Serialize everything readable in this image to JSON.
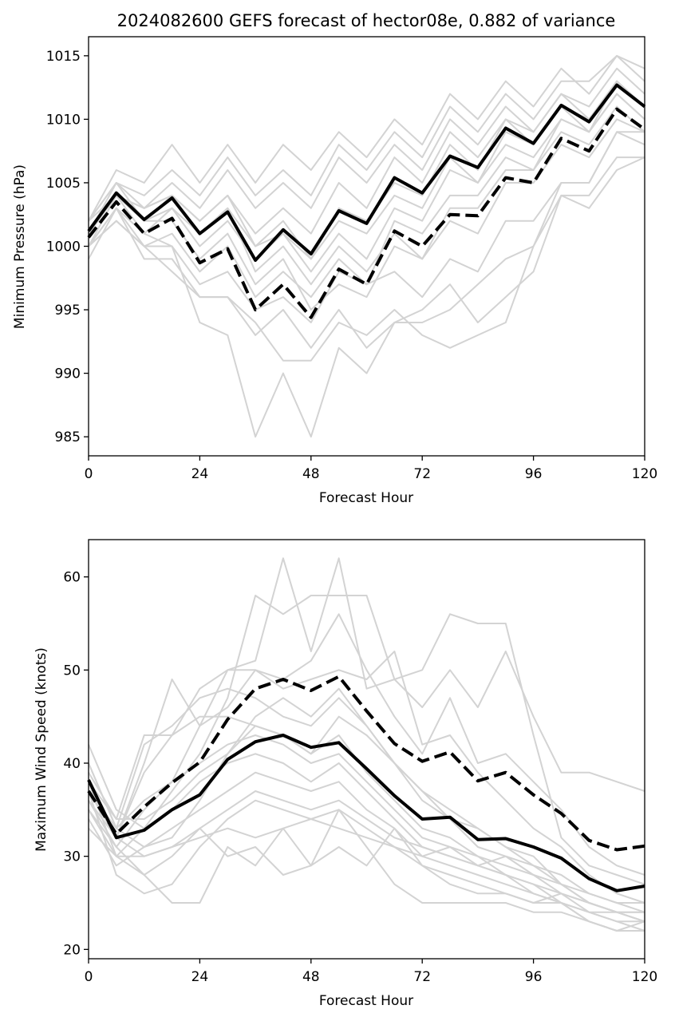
{
  "chart_data": [
    {
      "type": "line",
      "title": "2024082600 GEFS forecast of hector08e, 0.882 of variance",
      "xlabel": "Forecast Hour",
      "ylabel": "Minimum Pressure (hPa)",
      "xlim": [
        0,
        120
      ],
      "ylim": [
        983.5,
        1016.5
      ],
      "xticks": [
        0,
        24,
        48,
        72,
        96,
        120
      ],
      "yticks": [
        985,
        990,
        995,
        1000,
        1005,
        1010,
        1015
      ],
      "x": [
        0,
        6,
        12,
        18,
        24,
        30,
        36,
        42,
        48,
        54,
        60,
        66,
        72,
        78,
        84,
        90,
        96,
        102,
        108,
        114,
        120
      ],
      "series": [
        {
          "style": "member",
          "values": [
            1002,
            1006,
            1005,
            1008,
            1005,
            1008,
            1005,
            1008,
            1006,
            1009,
            1007,
            1010,
            1008,
            1012,
            1010,
            1013,
            1011,
            1014,
            1012,
            1015,
            1014
          ]
        },
        {
          "style": "member",
          "values": [
            1001,
            1005,
            1004,
            1006,
            1004,
            1007,
            1004,
            1006,
            1004,
            1008,
            1006,
            1009,
            1007,
            1011,
            1009,
            1012,
            1010,
            1013,
            1013,
            1015,
            1013
          ]
        },
        {
          "style": "member",
          "values": [
            1000,
            1004,
            1003,
            1005,
            1003,
            1006,
            1003,
            1005,
            1003,
            1007,
            1005,
            1008,
            1006,
            1010,
            1008,
            1011,
            1009,
            1012,
            1011,
            1014,
            1012
          ]
        },
        {
          "style": "member",
          "values": [
            1002,
            1005,
            1003,
            1004,
            1002,
            1004,
            1001,
            1003,
            1001,
            1005,
            1003,
            1007,
            1005,
            1009,
            1007,
            1010,
            1009,
            1012,
            1010,
            1013,
            1011
          ]
        },
        {
          "style": "member",
          "values": [
            1000,
            1003,
            1001,
            1003,
            1000,
            1002,
            999,
            1001,
            998,
            1001,
            999,
            1003,
            1002,
            1006,
            1005,
            1008,
            1007,
            1010,
            1009,
            1012,
            1010
          ]
        },
        {
          "style": "member",
          "values": [
            999,
            1003,
            1000,
            1001,
            998,
            1000,
            996,
            998,
            996,
            999,
            997,
            1002,
            1001,
            1004,
            1004,
            1007,
            1006,
            1009,
            1008,
            1011,
            1009
          ]
        },
        {
          "style": "member",
          "values": [
            1001,
            1004,
            1002,
            1002,
            999,
            1001,
            997,
            999,
            995,
            997,
            996,
            1000,
            999,
            1002,
            1001,
            1005,
            1005,
            1008,
            1007,
            1010,
            1009
          ]
        },
        {
          "style": "member",
          "values": [
            1000,
            1002,
            1000,
            1000,
            997,
            998,
            995,
            996,
            994,
            998,
            997,
            998,
            996,
            999,
            998,
            1002,
            1002,
            1005,
            1005,
            1009,
            1008
          ]
        },
        {
          "style": "member",
          "values": [
            1000,
            1003,
            999,
            999,
            996,
            996,
            993,
            995,
            992,
            995,
            992,
            994,
            994,
            995,
            997,
            999,
            1000,
            1004,
            1004,
            1007,
            1007
          ]
        },
        {
          "style": "member",
          "values": [
            1001,
            1004,
            1001,
            1000,
            994,
            993,
            985,
            990,
            985,
            992,
            990,
            994,
            995,
            997,
            994,
            996,
            998,
            1004,
            1003,
            1006,
            1007
          ]
        },
        {
          "style": "member",
          "values": [
            1000,
            1002,
            1000,
            998,
            996,
            996,
            994,
            991,
            991,
            994,
            993,
            995,
            993,
            992,
            993,
            994,
            1000,
            1005,
            1005,
            1009,
            1009
          ]
        },
        {
          "style": "member",
          "values": [
            1002,
            1004,
            1002,
            1003,
            1001,
            1003,
            1000,
            1002,
            999,
            1002,
            1001,
            1004,
            1003,
            1007,
            1005,
            1009,
            1008,
            1011,
            1009,
            1013,
            1011
          ]
        },
        {
          "style": "member",
          "values": [
            1002,
            1005,
            1002,
            1004,
            1001,
            1003,
            998,
            1000,
            997,
            1000,
            998,
            1001,
            999,
            1003,
            1003,
            1006,
            1006,
            1010,
            1009,
            1012,
            1010
          ]
        },
        {
          "style": "member",
          "values": [
            1001,
            1004,
            1003,
            1004,
            1002,
            1004,
            1000,
            1001,
            999,
            1003,
            1002,
            1005,
            1004,
            1008,
            1006,
            1010,
            1008,
            1011,
            1010,
            1013,
            1011
          ]
        },
        {
          "style": "mean",
          "values": [
            1001.2,
            1004.2,
            1002.1,
            1003.8,
            1001.0,
            1002.7,
            998.9,
            1001.3,
            999.4,
            1002.8,
            1001.8,
            1005.4,
            1004.2,
            1007.1,
            1006.2,
            1009.3,
            1008.1,
            1011.1,
            1009.8,
            1012.7,
            1011.0
          ]
        },
        {
          "style": "mean-dash",
          "values": [
            1000.7,
            1003.5,
            1001.0,
            1002.2,
            998.7,
            999.8,
            995.0,
            997.0,
            994.4,
            998.2,
            997.0,
            1001.2,
            1000.0,
            1002.5,
            1002.4,
            1005.4,
            1005.0,
            1008.5,
            1007.5,
            1010.8,
            1009.2
          ]
        }
      ]
    },
    {
      "type": "line",
      "xlabel": "Forecast Hour",
      "ylabel": "Maximum Wind Speed (knots)",
      "xlim": [
        0,
        120
      ],
      "ylim": [
        19,
        64
      ],
      "xticks": [
        0,
        24,
        48,
        72,
        96,
        120
      ],
      "yticks": [
        20,
        30,
        40,
        50,
        60
      ],
      "x": [
        0,
        6,
        12,
        18,
        24,
        30,
        36,
        42,
        48,
        54,
        60,
        66,
        72,
        78,
        84,
        90,
        96,
        102,
        108,
        114,
        120
      ],
      "series": [
        {
          "style": "member",
          "values": [
            42,
            35,
            33,
            37,
            41,
            47,
            58,
            56,
            58,
            58,
            58,
            49,
            50,
            56,
            55,
            55,
            43,
            32,
            29,
            28,
            27
          ]
        },
        {
          "style": "member",
          "values": [
            40,
            33,
            36,
            38,
            44,
            50,
            51,
            62,
            52,
            62,
            48,
            49,
            46,
            50,
            46,
            52,
            45,
            39,
            39,
            38,
            37
          ]
        },
        {
          "style": "member",
          "values": [
            38,
            32,
            40,
            49,
            44,
            46,
            50,
            49,
            51,
            56,
            50,
            45,
            41,
            47,
            40,
            41,
            38,
            35,
            31,
            29,
            28
          ]
        },
        {
          "style": "member",
          "values": [
            39,
            34,
            43,
            43,
            48,
            50,
            50,
            48,
            49,
            50,
            49,
            52,
            42,
            43,
            39,
            36,
            33,
            31,
            28,
            26,
            25
          ]
        },
        {
          "style": "member",
          "values": [
            37,
            33,
            42,
            44,
            47,
            48,
            47,
            45,
            44,
            47,
            44,
            40,
            37,
            34,
            33,
            31,
            30,
            27,
            25,
            24,
            23
          ]
        },
        {
          "style": "member",
          "values": [
            36,
            32,
            39,
            43,
            45,
            45,
            44,
            43,
            41,
            43,
            39,
            36,
            33,
            32,
            30,
            29,
            28,
            26,
            24,
            23,
            22
          ]
        },
        {
          "style": "member",
          "values": [
            36,
            31,
            35,
            38,
            40,
            42,
            43,
            42,
            40,
            41,
            38,
            35,
            32,
            31,
            30,
            28,
            27,
            25,
            23,
            22,
            22
          ]
        },
        {
          "style": "member",
          "values": [
            35,
            30,
            33,
            35,
            38,
            40,
            41,
            40,
            38,
            40,
            37,
            34,
            31,
            30,
            29,
            28,
            26,
            25,
            24,
            23,
            23
          ]
        },
        {
          "style": "member",
          "values": [
            34,
            29,
            31,
            33,
            35,
            37,
            39,
            38,
            37,
            38,
            35,
            33,
            30,
            29,
            28,
            27,
            26,
            25,
            23,
            22,
            22
          ]
        },
        {
          "style": "member",
          "values": [
            33,
            30,
            30,
            31,
            33,
            35,
            37,
            36,
            35,
            36,
            34,
            32,
            31,
            30,
            29,
            28,
            27,
            26,
            25,
            24,
            24
          ]
        },
        {
          "style": "member",
          "values": [
            37,
            28,
            26,
            27,
            31,
            34,
            36,
            35,
            34,
            35,
            33,
            31,
            29,
            28,
            27,
            26,
            25,
            25,
            24,
            24,
            23
          ]
        },
        {
          "style": "member",
          "values": [
            35,
            31,
            28,
            25,
            25,
            31,
            29,
            33,
            29,
            35,
            31,
            27,
            25,
            25,
            25,
            25,
            24,
            24,
            23,
            22,
            23
          ]
        },
        {
          "style": "member",
          "values": [
            38,
            30,
            28,
            30,
            33,
            30,
            31,
            28,
            29,
            31,
            29,
            33,
            29,
            27,
            26,
            26,
            25,
            26,
            25,
            24,
            23
          ]
        },
        {
          "style": "member",
          "values": [
            37,
            32,
            30,
            31,
            32,
            33,
            32,
            33,
            34,
            33,
            32,
            31,
            30,
            31,
            29,
            30,
            29,
            28,
            26,
            25,
            25
          ]
        },
        {
          "style": "member",
          "values": [
            40,
            33,
            31,
            32,
            36,
            41,
            45,
            47,
            45,
            48,
            44,
            40,
            37,
            35,
            33,
            31,
            29,
            27,
            25,
            24,
            24
          ]
        },
        {
          "style": "member",
          "values": [
            38,
            34,
            34,
            36,
            39,
            41,
            44,
            43,
            41,
            45,
            43,
            40,
            36,
            34,
            31,
            30,
            28,
            27,
            26,
            25,
            24
          ]
        },
        {
          "style": "mean",
          "values": [
            38.2,
            32.0,
            32.8,
            35.0,
            36.6,
            40.4,
            42.3,
            43.0,
            41.7,
            42.2,
            39.4,
            36.5,
            34.0,
            34.2,
            31.8,
            31.9,
            31.0,
            29.8,
            27.6,
            26.3,
            26.8
          ]
        },
        {
          "style": "mean-dash",
          "values": [
            37.0,
            32.4,
            35.3,
            37.9,
            40.1,
            44.7,
            48.0,
            49.0,
            47.8,
            49.3,
            45.6,
            42.1,
            40.2,
            41.2,
            38.1,
            39.0,
            36.6,
            34.6,
            31.7,
            30.7,
            31.1
          ]
        }
      ]
    }
  ]
}
